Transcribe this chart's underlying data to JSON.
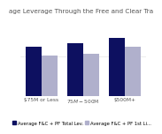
{
  "title": "age Leverage Through the Free and Clear Tra",
  "categories": [
    "$75M or Less",
    "$75M - $500M",
    "$500M+"
  ],
  "series1_label": "Average F&C + PF Total Lev.",
  "series2_label": "Average F&C + PF 1st Li...",
  "series1_values": [
    5.2,
    5.6,
    6.1
  ],
  "series2_values": [
    4.3,
    4.4,
    5.2
  ],
  "series1_color": "#0d1060",
  "series2_color": "#b0b0cc",
  "bar_width": 0.38,
  "ylim": [
    0,
    7.5
  ],
  "background_color": "#ffffff",
  "title_fontsize": 5.2,
  "label_fontsize": 4.2,
  "legend_fontsize": 3.8,
  "text_color": "#555555"
}
